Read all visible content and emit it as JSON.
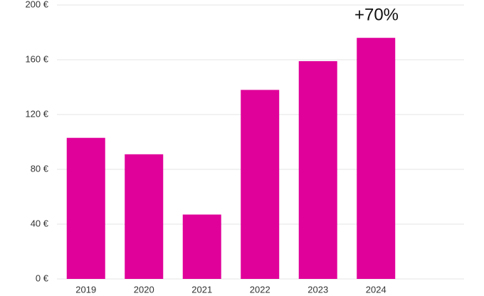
{
  "chart_data": {
    "type": "bar",
    "categories": [
      "2019",
      "2020",
      "2021",
      "2022",
      "2023",
      "2024"
    ],
    "values": [
      103,
      91,
      47,
      138,
      159,
      176
    ],
    "color": "#e0009a",
    "ylim": [
      0,
      200
    ],
    "yticks": [
      {
        "value": 0,
        "label": "0 €"
      },
      {
        "value": 40,
        "label": "40 €"
      },
      {
        "value": 80,
        "label": "80 €"
      },
      {
        "value": 120,
        "label": "120 €"
      },
      {
        "value": 160,
        "label": "160 €"
      },
      {
        "value": 200,
        "label": "200 €"
      }
    ],
    "grid": true,
    "annotation": "+70%"
  }
}
